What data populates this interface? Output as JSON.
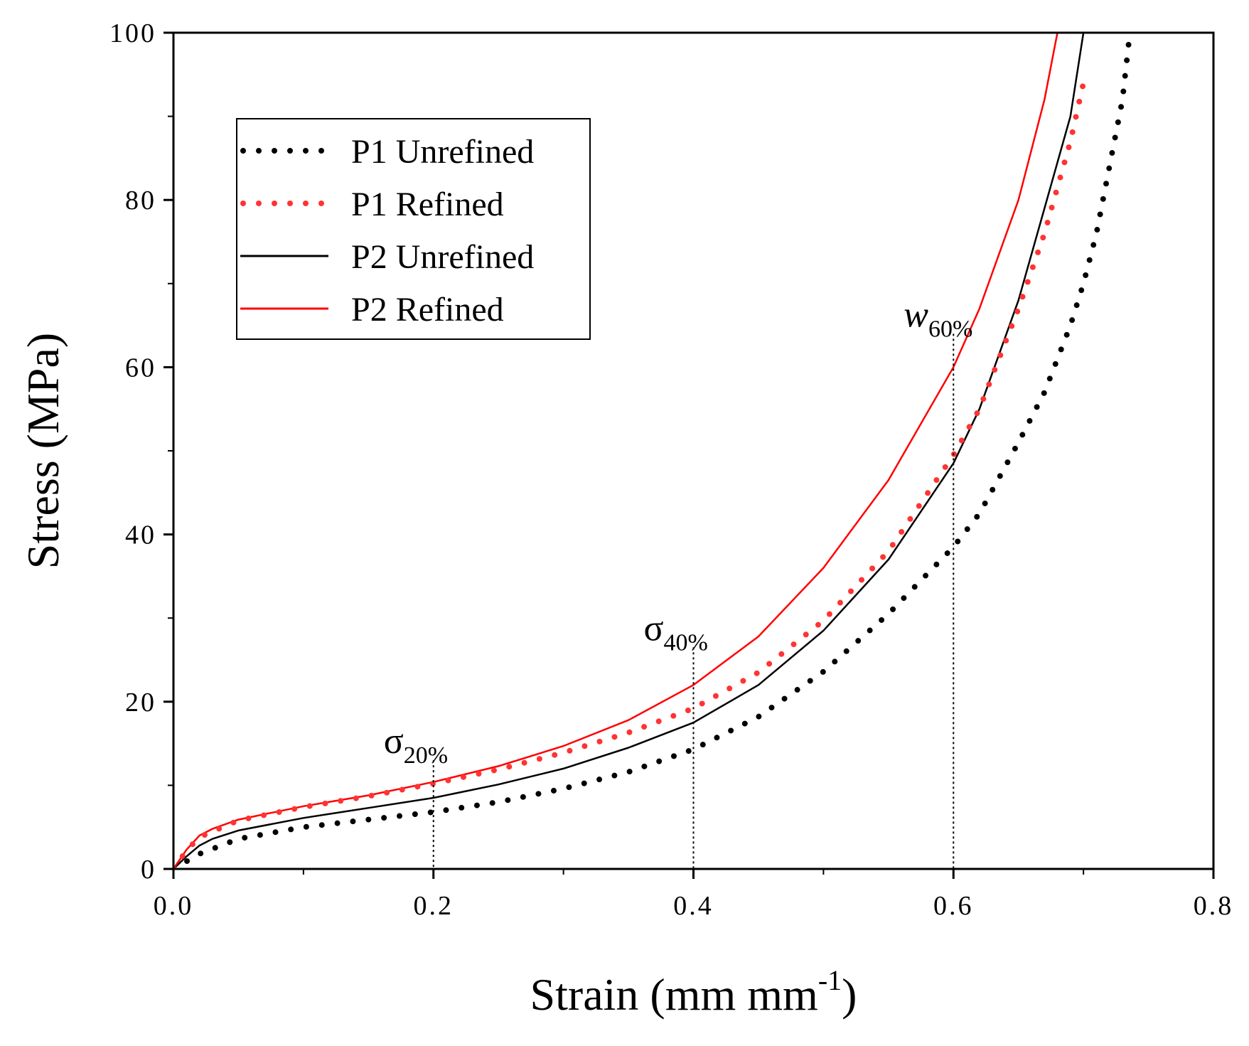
{
  "chart_data": {
    "type": "line",
    "title": "",
    "xlabel": "Strain (mm mm",
    "xlabel_sup": "-1",
    "xlabel_close": ")",
    "ylabel": "Stress (MPa)",
    "xlim": [
      0,
      0.8
    ],
    "ylim": [
      0,
      100
    ],
    "x_ticks": [
      0,
      0.2,
      0.4,
      0.6,
      0.8
    ],
    "x_tick_labels": [
      "0.0",
      "0.2",
      "0.4",
      "0.6",
      "0.8"
    ],
    "y_ticks": [
      0,
      20,
      40,
      60,
      80,
      100
    ],
    "y_tick_labels": [
      "0",
      "20",
      "40",
      "60",
      "80",
      "100"
    ],
    "grid": false,
    "legend_position": "top-left",
    "series": [
      {
        "name": "P1 Unrefined",
        "color": "#000000",
        "style": "dotted",
        "x": [
          0,
          0.02,
          0.05,
          0.1,
          0.15,
          0.2,
          0.25,
          0.3,
          0.35,
          0.4,
          0.45,
          0.5,
          0.55,
          0.6,
          0.62,
          0.65,
          0.67,
          0.69,
          0.7,
          0.71,
          0.72,
          0.73,
          0.735
        ],
        "values": [
          0,
          1.8,
          3.6,
          5.0,
          5.9,
          6.8,
          8.0,
          9.6,
          11.6,
          14.3,
          18.2,
          23.6,
          30.5,
          38.5,
          42.5,
          51.0,
          57.0,
          65.0,
          70.0,
          76.0,
          84.0,
          92.0,
          99.0
        ]
      },
      {
        "name": "P1 Refined",
        "color": "#ff3333",
        "style": "dotted",
        "x": [
          0,
          0.01,
          0.02,
          0.05,
          0.1,
          0.15,
          0.2,
          0.25,
          0.3,
          0.35,
          0.4,
          0.45,
          0.5,
          0.55,
          0.6,
          0.62,
          0.65,
          0.67,
          0.69,
          0.7
        ],
        "values": [
          0,
          2.2,
          3.8,
          5.8,
          7.4,
          8.7,
          10.2,
          11.9,
          13.9,
          16.3,
          19.2,
          23.5,
          29.7,
          38.0,
          49.5,
          55.0,
          67.0,
          76.0,
          87.0,
          94.0
        ]
      },
      {
        "name": "P2 Unrefined",
        "color": "#000000",
        "style": "solid",
        "x": [
          0,
          0.01,
          0.02,
          0.03,
          0.05,
          0.1,
          0.15,
          0.2,
          0.25,
          0.3,
          0.35,
          0.4,
          0.45,
          0.5,
          0.55,
          0.6,
          0.62,
          0.65,
          0.67,
          0.69,
          0.7
        ],
        "values": [
          0,
          1.5,
          2.8,
          3.6,
          4.6,
          6.1,
          7.3,
          8.5,
          10.1,
          12.0,
          14.5,
          17.5,
          22.0,
          28.5,
          37.0,
          48.5,
          55.0,
          68.0,
          79.0,
          90.0,
          100.0
        ]
      },
      {
        "name": "P2 Refined",
        "color": "#ff0000",
        "style": "solid",
        "x": [
          0,
          0.01,
          0.02,
          0.03,
          0.05,
          0.1,
          0.15,
          0.2,
          0.25,
          0.3,
          0.35,
          0.4,
          0.45,
          0.5,
          0.55,
          0.6,
          0.62,
          0.65,
          0.67,
          0.68
        ],
        "values": [
          0,
          2.3,
          4.0,
          4.8,
          5.9,
          7.5,
          8.8,
          10.4,
          12.3,
          14.7,
          17.8,
          22.0,
          27.8,
          36.0,
          46.5,
          60.0,
          67.0,
          80.0,
          92.0,
          100.0
        ]
      }
    ],
    "annotations": [
      {
        "symbol": "σ",
        "subscript": "20%",
        "italic": false,
        "x": 0.2,
        "y_top": 13.0
      },
      {
        "symbol": "σ",
        "subscript": "40%",
        "italic": false,
        "x": 0.4,
        "y_top": 26.5
      },
      {
        "symbol": "w",
        "subscript": "60%",
        "italic": true,
        "x": 0.6,
        "y_top": 64.0
      }
    ]
  }
}
